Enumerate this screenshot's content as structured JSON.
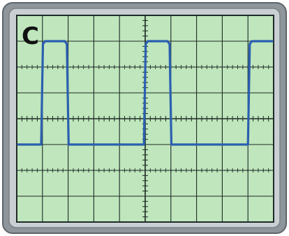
{
  "panel_label": "C",
  "colors": {
    "bezel_outer": "#8e969c",
    "bezel_inner": "#c9cfd2",
    "screen": "#bfe6bc",
    "grid": "#1e2a26",
    "trace": "#2b5fb0",
    "label": "#111111"
  },
  "scope": {
    "divisions_x": 10,
    "divisions_y": 8,
    "minor_per_division": 5,
    "dotted_reference_rows": [
      2,
      6
    ]
  },
  "trace": {
    "shape": "square-pulse",
    "low_level_div": 5,
    "high_level_div": 1,
    "pulses": [
      {
        "rise_div": 0.95,
        "fall_div": 1.95
      },
      {
        "rise_div": 4.95,
        "fall_div": 5.95
      },
      {
        "rise_div": 9.0,
        "fall_div": null
      }
    ]
  }
}
